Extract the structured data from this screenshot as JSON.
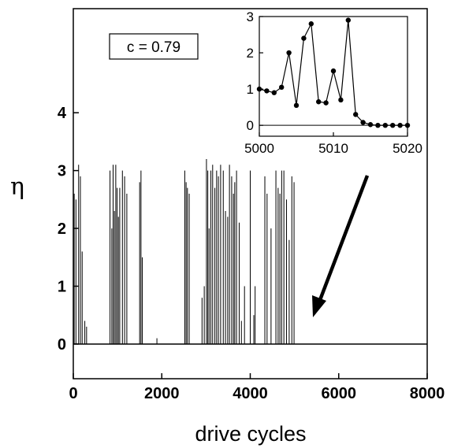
{
  "chart_data": [
    {
      "type": "line",
      "xlabel": "drive cycles",
      "ylabel": "η",
      "xlim": [
        0,
        8000
      ],
      "ylim": [
        -0.6,
        5.8
      ],
      "xticks": [
        0,
        2000,
        4000,
        6000,
        8000
      ],
      "yticks": [
        0,
        1,
        2,
        3,
        4
      ],
      "grid": false,
      "legend": "none",
      "zero_line": true,
      "annotation": "c = 0.79",
      "series": [
        {
          "x": [
            20,
            60,
            120,
            160,
            200,
            260,
            300,
            830,
            870,
            900,
            930,
            960,
            990,
            1020,
            1050,
            1110,
            1160,
            1210,
            1500,
            1530,
            1560,
            1890,
            2520,
            2550,
            2580,
            2620,
            2910,
            2960,
            3010,
            3040,
            3070,
            3110,
            3150,
            3200,
            3240,
            3280,
            3330,
            3390,
            3440,
            3490,
            3530,
            3580,
            3620,
            3650,
            3690,
            3750,
            3800,
            3870,
            4000,
            4080,
            4110,
            4330,
            4380,
            4470,
            4580,
            4630,
            4670,
            4710,
            4760,
            4820,
            4880,
            4940,
            4990
          ],
          "values": [
            2.6,
            2.5,
            3.1,
            2.9,
            1.6,
            0.4,
            0.3,
            3.0,
            2.0,
            3.1,
            2.3,
            3.1,
            2.7,
            2.2,
            2.7,
            3.0,
            2.9,
            2.6,
            2.8,
            3.0,
            1.5,
            0.1,
            3.0,
            2.8,
            2.7,
            2.6,
            0.8,
            1.0,
            3.2,
            3.0,
            2.0,
            3.0,
            3.1,
            2.7,
            3.0,
            2.9,
            3.1,
            3.0,
            2.3,
            2.2,
            3.1,
            2.9,
            2.6,
            2.8,
            3.0,
            2.1,
            0.4,
            1.0,
            3.0,
            0.5,
            1.0,
            2.9,
            2.6,
            2.0,
            3.0,
            2.7,
            2.6,
            3.0,
            3.0,
            2.5,
            1.8,
            2.9,
            2.8
          ]
        }
      ]
    },
    {
      "type": "line",
      "xlim": [
        5000,
        5020
      ],
      "ylim": [
        -0.3,
        3.0
      ],
      "xticks": [
        5000,
        5010,
        5020
      ],
      "yticks": [
        0,
        1,
        2,
        3
      ],
      "grid": false,
      "legend": "none",
      "markers": true,
      "zero_line": true,
      "series": [
        {
          "x": [
            5000,
            5001,
            5002,
            5003,
            5004,
            5005,
            5006,
            5007,
            5008,
            5009,
            5010,
            5011,
            5012,
            5013,
            5014,
            5015,
            5016,
            5017,
            5018,
            5019,
            5020
          ],
          "values": [
            1.0,
            0.95,
            0.9,
            1.05,
            2.0,
            0.55,
            2.4,
            2.8,
            0.65,
            0.62,
            1.5,
            0.7,
            2.9,
            0.3,
            0.08,
            0.02,
            0.0,
            0.0,
            0.0,
            0.0,
            0.0
          ]
        }
      ]
    }
  ]
}
